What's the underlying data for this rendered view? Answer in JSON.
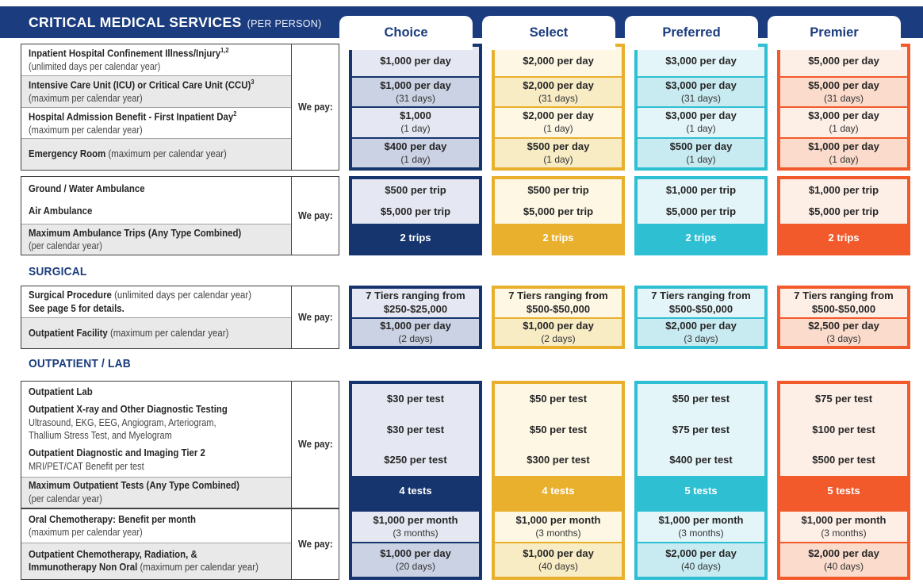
{
  "header": {
    "title": "CRITICAL MEDICAL SERVICES",
    "subtitle": "(PER PERSON)"
  },
  "we_pay_label": "We pay:",
  "colors": {
    "navy": "#1b3c7e"
  },
  "plans": [
    {
      "name": "Choice",
      "accent": "#16356e",
      "light": "#e5e8f2",
      "dark": "#cbd2e4"
    },
    {
      "name": "Select",
      "accent": "#e9b02e",
      "light": "#fdf7e4",
      "dark": "#f8ecc5"
    },
    {
      "name": "Preferred",
      "accent": "#2fbfd3",
      "light": "#e4f5f9",
      "dark": "#c8ebf2"
    },
    {
      "name": "Premier",
      "accent": "#f25a2b",
      "light": "#fdeee6",
      "dark": "#fbdbcb"
    }
  ],
  "sections": [
    {
      "title": null,
      "bands": [
        {
          "rows": [
            {
              "left": {
                "title": "Inpatient Hospital Confinement Illness/Injury",
                "sup": "1,2",
                "sub": "(unlimited days per calendar year)"
              },
              "values": [
                {
                  "main": "$1,000 per day"
                },
                {
                  "main": "$2,000 per day"
                },
                {
                  "main": "$3,000 per day"
                },
                {
                  "main": "$5,000 per day"
                }
              ]
            },
            {
              "left": {
                "title": "Intensive Care Unit (ICU) or Critical Care Unit (CCU)",
                "sup": "3",
                "sub": "(maximum per calendar year)"
              },
              "values": [
                {
                  "main": "$1,000 per day",
                  "sub": "(31 days)"
                },
                {
                  "main": "$2,000 per day",
                  "sub": "(31 days)"
                },
                {
                  "main": "$3,000 per day",
                  "sub": "(31 days)"
                },
                {
                  "main": "$5,000 per day",
                  "sub": "(31 days)"
                }
              ]
            },
            {
              "left": {
                "title": "Hospital Admission Benefit - First Inpatient Day",
                "sup": "2",
                "sub": "(maximum per calendar year)"
              },
              "values": [
                {
                  "main": "$1,000",
                  "sub": "(1 day)"
                },
                {
                  "main": "$2,000 per day",
                  "sub": "(1 day)"
                },
                {
                  "main": "$3,000 per day",
                  "sub": "(1 day)"
                },
                {
                  "main": "$3,000 per day",
                  "sub": "(1 day)"
                }
              ]
            },
            {
              "left": {
                "title": "Emergency Room",
                "after": " (maximum per calendar year)"
              },
              "values": [
                {
                  "main": "$400 per day",
                  "sub": "(1 day)"
                },
                {
                  "main": "$500 per day",
                  "sub": "(1 day)"
                },
                {
                  "main": "$500 per day",
                  "sub": "(1 day)"
                },
                {
                  "main": "$1,000 per day",
                  "sub": "(1 day)"
                }
              ]
            }
          ]
        },
        {
          "rows": [
            {
              "left": {
                "items": [
                  {
                    "title": "Ground / Water Ambulance"
                  },
                  {
                    "title": "Air Ambulance"
                  }
                ]
              },
              "values": [
                {
                  "lines": [
                    "$500 per trip",
                    "$5,000 per trip"
                  ]
                },
                {
                  "lines": [
                    "$500 per trip",
                    "$5,000 per trip"
                  ]
                },
                {
                  "lines": [
                    "$1,000 per trip",
                    "$5,000 per trip"
                  ]
                },
                {
                  "lines": [
                    "$1,000 per trip",
                    "$5,000 per trip"
                  ]
                }
              ]
            },
            {
              "solid": true,
              "left": {
                "title": "Maximum Ambulance Trips (Any Type Combined)",
                "sub": "(per calendar year)"
              },
              "values": [
                {
                  "main": "2 trips"
                },
                {
                  "main": "2 trips"
                },
                {
                  "main": "2 trips"
                },
                {
                  "main": "2 trips"
                }
              ]
            }
          ]
        }
      ]
    },
    {
      "title": "SURGICAL",
      "bands": [
        {
          "rows": [
            {
              "left": {
                "title": "Surgical Procedure",
                "after": " (unlimited days per calendar year)",
                "title2": "See page 5 for details."
              },
              "values": [
                {
                  "main": "7 Tiers ranging from",
                  "main2": "$250-$25,000"
                },
                {
                  "main": "7 Tiers ranging from",
                  "main2": "$500-$50,000"
                },
                {
                  "main": "7 Tiers ranging from",
                  "main2": "$500-$50,000"
                },
                {
                  "main": "7 Tiers ranging from",
                  "main2": "$500-$50,000"
                }
              ]
            },
            {
              "left": {
                "title": "Outpatient Facility",
                "after": " (maximum per calendar year)"
              },
              "values": [
                {
                  "main": "$1,000 per day",
                  "sub": "(2 days)"
                },
                {
                  "main": "$1,000 per day",
                  "sub": "(2 days)"
                },
                {
                  "main": "$2,000 per day",
                  "sub": "(3 days)"
                },
                {
                  "main": "$2,500 per day",
                  "sub": "(3 days)"
                }
              ]
            }
          ]
        }
      ]
    },
    {
      "title": "OUTPATIENT / LAB",
      "bands": [
        {
          "rows": [
            {
              "left": {
                "items": [
                  {
                    "title": "Outpatient Lab"
                  },
                  {
                    "title": "Outpatient X-ray and Other Diagnostic Testing",
                    "sub": "Ultrasound, EKG, EEG, Angiogram, Arteriogram,",
                    "sub2": "Thallium Stress Test, and Myelogram"
                  },
                  {
                    "title": "Outpatient Diagnostic and Imaging Tier 2",
                    "sub": "MRI/PET/CAT Benefit per test"
                  }
                ]
              },
              "values": [
                {
                  "lines": [
                    "$30 per test",
                    "$30 per test",
                    "$250 per test"
                  ]
                },
                {
                  "lines": [
                    "$50 per test",
                    "$50 per test",
                    "$300 per test"
                  ]
                },
                {
                  "lines": [
                    "$50 per test",
                    "$75 per test",
                    "$400 per test"
                  ]
                },
                {
                  "lines": [
                    "$75 per test",
                    "$100 per test",
                    "$500 per test"
                  ]
                }
              ]
            },
            {
              "solid": true,
              "left": {
                "title": "Maximum Outpatient Tests (Any Type Combined)",
                "sub": "(per calendar year)"
              },
              "values": [
                {
                  "main": "4 tests"
                },
                {
                  "main": "4 tests"
                },
                {
                  "main": "5 tests"
                },
                {
                  "main": "5 tests"
                }
              ]
            }
          ]
        },
        {
          "rows": [
            {
              "left": {
                "title": "Oral Chemotherapy: Benefit per month",
                "sub": "(maximum per calendar year)"
              },
              "values": [
                {
                  "main": "$1,000 per month",
                  "sub": "(3 months)"
                },
                {
                  "main": "$1,000 per month",
                  "sub": "(3 months)"
                },
                {
                  "main": "$1,000 per month",
                  "sub": "(3 months)"
                },
                {
                  "main": "$1,000 per month",
                  "sub": "(3 months)"
                }
              ]
            },
            {
              "left": {
                "title": "Outpatient Chemotherapy, Radiation, &",
                "title2": "Immunotherapy Non Oral",
                "after2": " (maximum per calendar year)"
              },
              "values": [
                {
                  "main": "$1,000 per day",
                  "sub": "(20 days)"
                },
                {
                  "main": "$1,000 per day",
                  "sub": "(40 days)"
                },
                {
                  "main": "$2,000 per day",
                  "sub": "(40 days)"
                },
                {
                  "main": "$2,000 per day",
                  "sub": "(40 days)"
                }
              ]
            }
          ]
        }
      ]
    }
  ]
}
